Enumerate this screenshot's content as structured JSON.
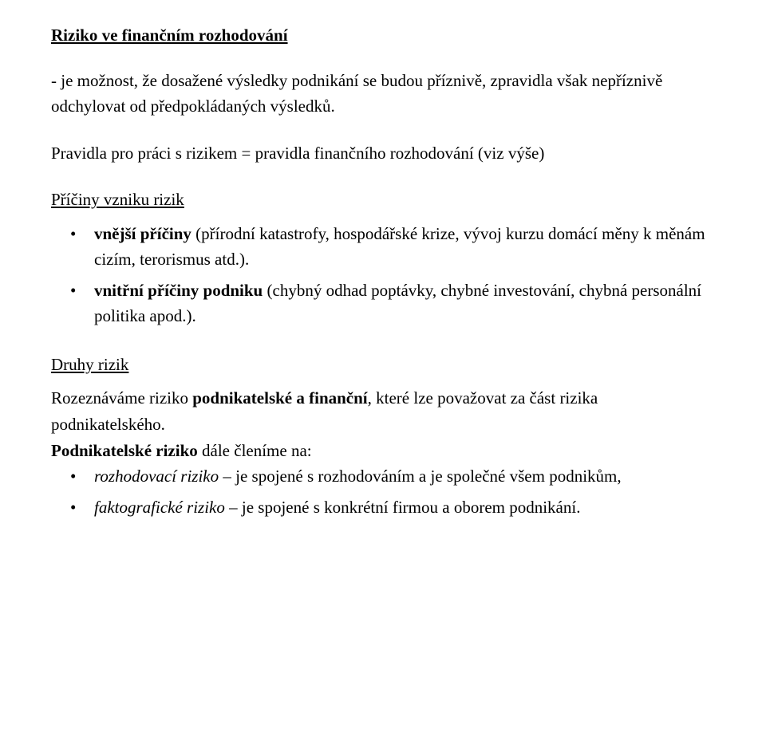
{
  "colors": {
    "text": "#000000",
    "background": "#ffffff"
  },
  "typography": {
    "family": "Times New Roman",
    "body_size_pt": 16,
    "title_weight": "bold",
    "line_height": 1.55
  },
  "title": "Riziko ve finančním rozhodování",
  "lead": "- je možnost, že dosažené výsledky podnikání se budou příznivě, zpravidla však nepříznivě odchylovat od předpokládaných výsledků.",
  "rules_line": "Pravidla pro práci s rizikem = pravidla finančního rozhodování (viz výše)",
  "causes_heading": "Příčiny vzniku rizik",
  "cause1": {
    "lead_bold": "vnější příčiny",
    "rest": " (přírodní katastrofy, hospodářské krize, vývoj kurzu domácí měny k měnám cizím, terorismus atd.)."
  },
  "cause2": {
    "lead_bold": "vnitřní příčiny podniku ",
    "rest": " (chybný odhad poptávky, chybné investování, chybná personální politika apod.)."
  },
  "types_heading": "Druhy rizik",
  "types_para": {
    "t1": "Rozeznáváme riziko ",
    "b1": "podnikatelské a finanční",
    "t2": ", které lze považovat za část rizika podnikatelského."
  },
  "sub_para": {
    "b1": "Podnikatelské riziko",
    "t1": " dále členíme na:"
  },
  "subbullets": {
    "b1_it": "rozhodovací riziko",
    "b1_rest": " – je spojené s rozhodováním a je společné všem podnikům,",
    "b2_it": "faktografické riziko",
    "b2_rest": " – je spojené s konkrétní firmou a oborem podnikání."
  }
}
